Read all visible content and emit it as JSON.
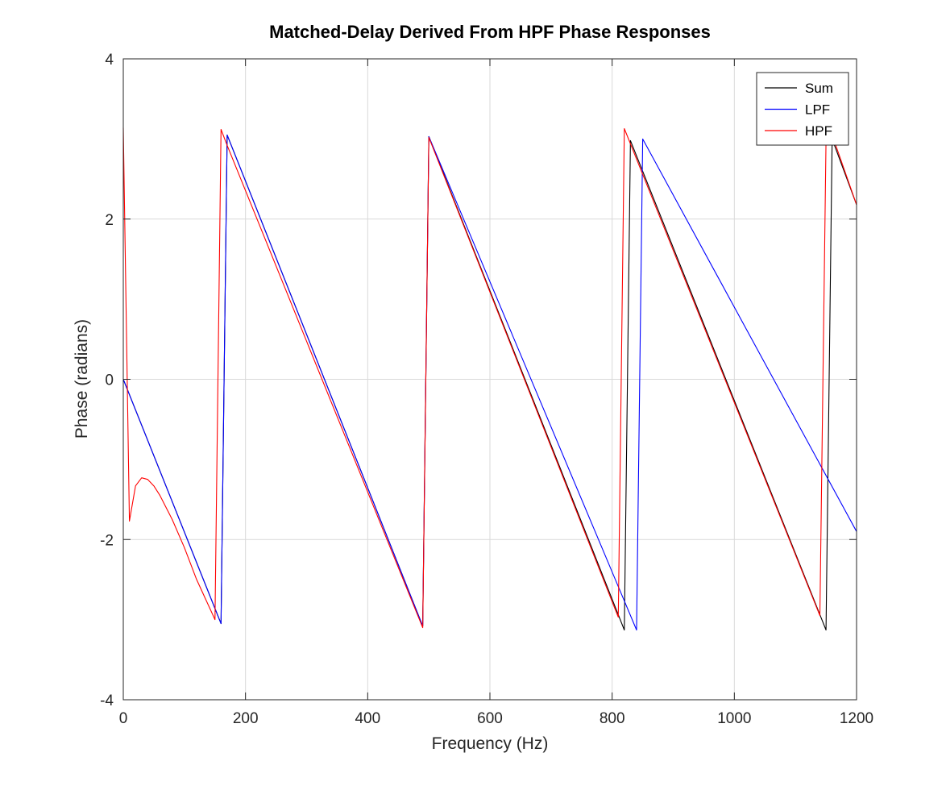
{
  "chart_data": {
    "type": "line",
    "title": "Matched-Delay Derived From HPF Phase Responses",
    "xlabel": "Frequency (Hz)",
    "ylabel": "Phase (radians)",
    "xlim": [
      0,
      1200
    ],
    "ylim": [
      -4,
      4
    ],
    "xticks": [
      0,
      200,
      400,
      600,
      800,
      1000,
      1200
    ],
    "yticks": [
      -4,
      -2,
      0,
      2,
      4
    ],
    "xtick_labels": [
      "0",
      "200",
      "400",
      "600",
      "800",
      "1000",
      "1200"
    ],
    "ytick_labels": [
      "-4",
      "-2",
      "0",
      "2",
      "4"
    ],
    "grid": true,
    "legend_position": "top-right",
    "series": [
      {
        "name": "Sum",
        "color": "#000000",
        "x": [
          0,
          160,
          170,
          490,
          500,
          820,
          830,
          1150,
          1160,
          1200
        ],
        "y": [
          0.0,
          -3.05,
          3.05,
          -3.08,
          3.03,
          -3.13,
          2.98,
          -3.13,
          3.0,
          2.18
        ]
      },
      {
        "name": "LPF",
        "color": "#0000ff",
        "x": [
          0,
          160,
          170,
          490,
          500,
          840,
          850,
          1200
        ],
        "y": [
          0.0,
          -3.05,
          3.05,
          -3.08,
          3.03,
          -3.13,
          3.0,
          -1.9
        ]
      },
      {
        "name": "HPF",
        "color": "#ff0000",
        "x": [
          0,
          10,
          20,
          30,
          40,
          50,
          60,
          80,
          100,
          120,
          150,
          160,
          170,
          490,
          500,
          810,
          820,
          1140,
          1150,
          1160,
          1200
        ],
        "y": [
          3.14,
          -1.77,
          -1.33,
          -1.23,
          -1.25,
          -1.33,
          -1.45,
          -1.75,
          -2.1,
          -2.5,
          -3.0,
          3.12,
          2.92,
          -3.1,
          3.02,
          -2.97,
          3.13,
          -2.95,
          2.98,
          3.05,
          2.18
        ]
      }
    ]
  }
}
